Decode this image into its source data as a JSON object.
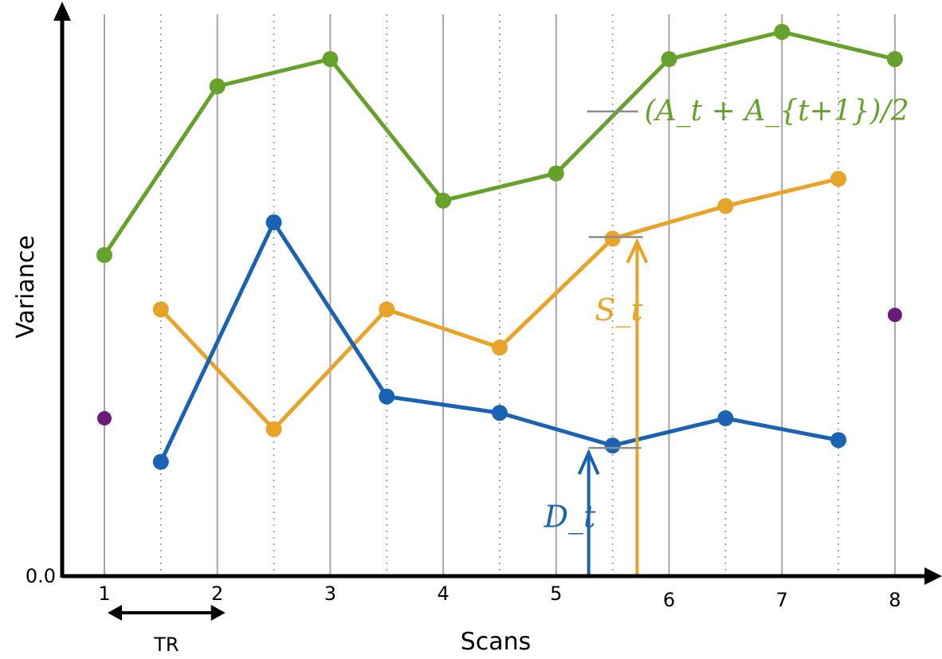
{
  "chart_data": {
    "type": "line",
    "title": "",
    "xlabel": "Scans",
    "ylabel": "Variance",
    "y_origin_label": "0.0",
    "x_ticks": [
      1,
      2,
      3,
      4,
      5,
      6,
      7,
      8
    ],
    "xlim": [
      0.65,
      8.3
    ],
    "ylim": [
      0,
      1
    ],
    "grid": "solid vertical lines at scans, dotted vertical lines at half-scans",
    "tr_label": "TR",
    "tr_span": [
      1,
      2
    ],
    "series": [
      {
        "color": "#66a12b",
        "x": [
          1,
          2,
          3,
          4,
          5,
          6,
          7,
          8
        ],
        "y": [
          0.59,
          0.9,
          0.95,
          0.69,
          0.74,
          0.95,
          1.0,
          0.95
        ]
      },
      {
        "color": "#e8a428",
        "x": [
          1.5,
          2.5,
          3.5,
          4.5,
          5.5,
          6.5,
          7.5
        ],
        "y": [
          0.49,
          0.27,
          0.49,
          0.42,
          0.62,
          0.68,
          0.73
        ]
      },
      {
        "color": "#1a63b3",
        "x": [
          1.5,
          2.5,
          3.5,
          4.5,
          5.5,
          6.5,
          7.5
        ],
        "y": [
          0.21,
          0.65,
          0.33,
          0.3,
          0.24,
          0.29,
          0.25
        ]
      },
      {
        "color": "#6a1b7a",
        "x": [
          1,
          8
        ],
        "y": [
          0.29,
          0.48
        ]
      }
    ],
    "annotations": {
      "avg_label": "(A_t + A_{t+1})/2",
      "s_label": "S_t",
      "d_label": "D_t"
    }
  }
}
